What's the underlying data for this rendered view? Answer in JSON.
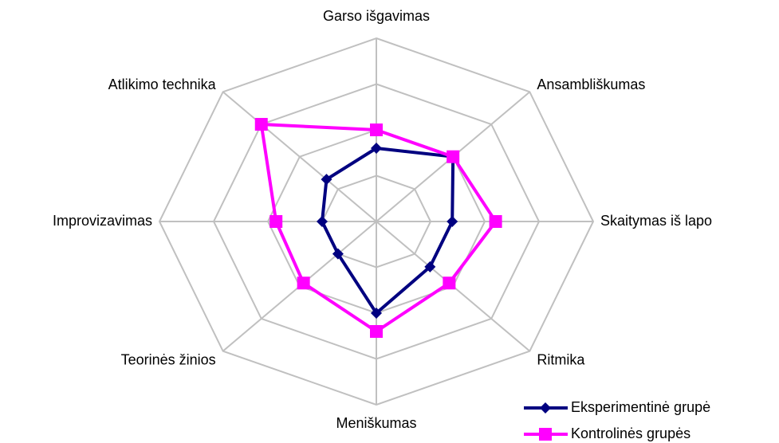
{
  "chart_data": {
    "type": "radar",
    "categories": [
      "Garso išgavimas",
      "Ansambliškumas",
      "Skaitymas iš lapo",
      "Ritmika",
      "Meniškumas",
      "Teorinės žinios",
      "Improvizavimas",
      "Atlikimo technika"
    ],
    "series": [
      {
        "name": "Eksperimentinė grupė",
        "color": "#000080",
        "marker": "diamond",
        "values": [
          1.6,
          2.0,
          1.4,
          1.4,
          2.0,
          1.0,
          1.0,
          1.3
        ]
      },
      {
        "name": "Kontrolinės grupės",
        "color": "#ff00ff",
        "marker": "square",
        "values": [
          2.0,
          2.0,
          2.2,
          1.9,
          2.4,
          1.9,
          1.85,
          3.0
        ]
      }
    ],
    "ylim": [
      0,
      4
    ],
    "yticks": [
      1,
      2,
      3,
      4
    ],
    "grid": true,
    "legend": "bottom-right"
  }
}
